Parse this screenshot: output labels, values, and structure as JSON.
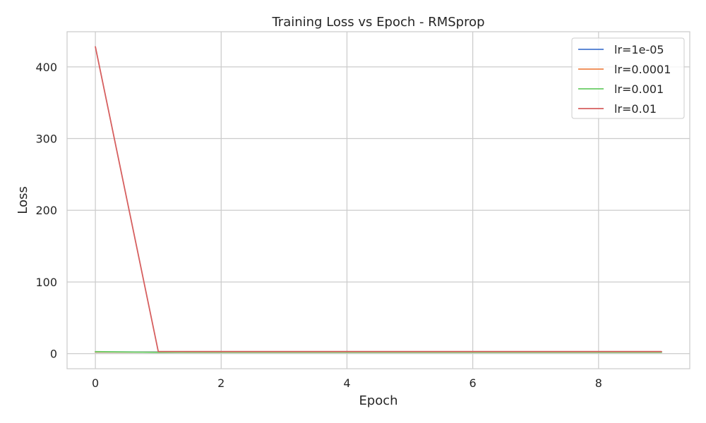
{
  "chart_data": {
    "type": "line",
    "title": "Training Loss vs Epoch - RMSprop",
    "xlabel": "Epoch",
    "ylabel": "Loss",
    "x": [
      0,
      1,
      2,
      3,
      4,
      5,
      6,
      7,
      8,
      9
    ],
    "xlim": [
      -0.45,
      9.45
    ],
    "ylim": [
      -21,
      449
    ],
    "xticks": [
      0,
      2,
      4,
      6,
      8
    ],
    "yticks": [
      0,
      100,
      200,
      300,
      400
    ],
    "grid": true,
    "legend_position": "top-right",
    "series": [
      {
        "name": "lr=1e-05",
        "color": "#4878d0",
        "values": [
          2.3,
          2.3,
          2.3,
          2.3,
          2.3,
          2.3,
          2.3,
          2.3,
          2.3,
          2.3
        ]
      },
      {
        "name": "lr=0.0001",
        "color": "#ee854a",
        "values": [
          2.2,
          2.0,
          2.0,
          2.0,
          2.0,
          2.0,
          2.0,
          2.0,
          2.0,
          2.0
        ]
      },
      {
        "name": "lr=0.001",
        "color": "#6acc64",
        "values": [
          2.8,
          1.8,
          1.9,
          1.9,
          1.9,
          1.9,
          1.9,
          1.9,
          1.9,
          1.9
        ]
      },
      {
        "name": "lr=0.01",
        "color": "#d65f5f",
        "values": [
          428,
          3.0,
          2.9,
          2.9,
          2.9,
          2.9,
          2.9,
          2.9,
          2.9,
          2.9
        ]
      }
    ]
  }
}
